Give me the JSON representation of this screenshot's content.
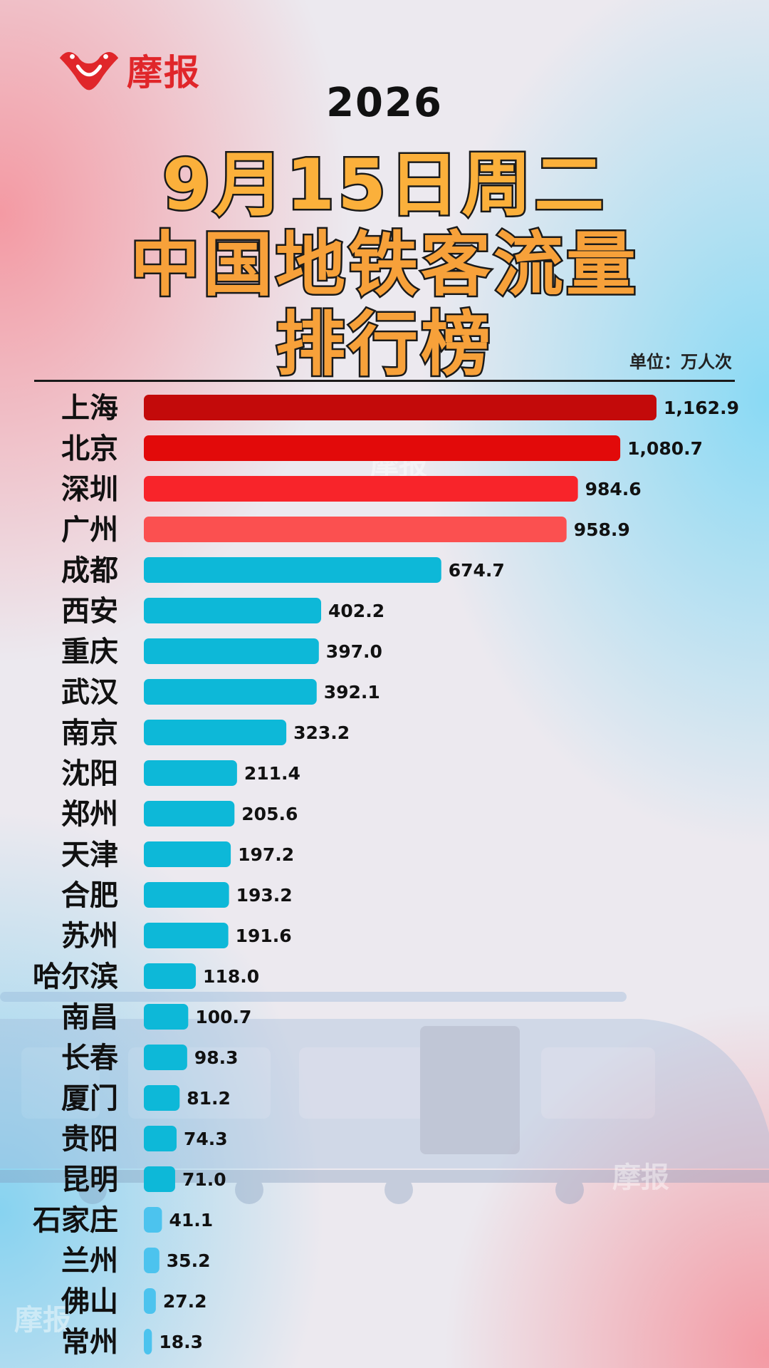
{
  "brand": {
    "name": "摩报",
    "logo_icon": "mobao-logo-icon",
    "color": "#e0262a"
  },
  "header": {
    "year": "2026",
    "date_line": "9月15日周二",
    "title_line1": "中国地铁客流量",
    "title_line2": "排行榜",
    "unit": "单位：万人次"
  },
  "chart_data": {
    "type": "bar",
    "orientation": "horizontal",
    "categories": [
      "上海",
      "北京",
      "深圳",
      "广州",
      "成都",
      "西安",
      "重庆",
      "武汉",
      "南京",
      "沈阳",
      "郑州",
      "天津",
      "合肥",
      "苏州",
      "哈尔滨",
      "南昌",
      "长春",
      "厦门",
      "贵阳",
      "昆明",
      "石家庄",
      "兰州",
      "佛山",
      "常州"
    ],
    "values": [
      1162.9,
      1080.7,
      984.6,
      958.9,
      674.7,
      402.2,
      397.0,
      392.1,
      323.2,
      211.4,
      205.6,
      197.2,
      193.2,
      191.6,
      118.0,
      100.7,
      98.3,
      81.2,
      74.3,
      71.0,
      41.1,
      35.2,
      27.2,
      18.3
    ],
    "value_labels": [
      "1,162.9",
      "1,080.7",
      "984.6",
      "958.9",
      "674.7",
      "402.2",
      "397.0",
      "392.1",
      "323.2",
      "211.4",
      "205.6",
      "197.2",
      "193.2",
      "191.6",
      "118.0",
      "100.7",
      "98.3",
      "81.2",
      "74.3",
      "71.0",
      "41.1",
      "35.2",
      "27.2",
      "18.3"
    ],
    "colors": [
      "#c30a0a",
      "#e20a0a",
      "#f8242a",
      "#fb5050",
      "#0db8d8",
      "#0db8d8",
      "#0db8d8",
      "#0db8d8",
      "#0db8d8",
      "#0db8d8",
      "#0db8d8",
      "#0db8d8",
      "#0db8d8",
      "#0db8d8",
      "#0db8d8",
      "#0db8d8",
      "#0db8d8",
      "#0db8d8",
      "#0db8d8",
      "#0db8d8",
      "#4cc3ee",
      "#4cc3ee",
      "#4cc3ee",
      "#4cc3ee"
    ],
    "xlim": [
      0,
      1162.9
    ],
    "grid": false,
    "legend": "none"
  }
}
